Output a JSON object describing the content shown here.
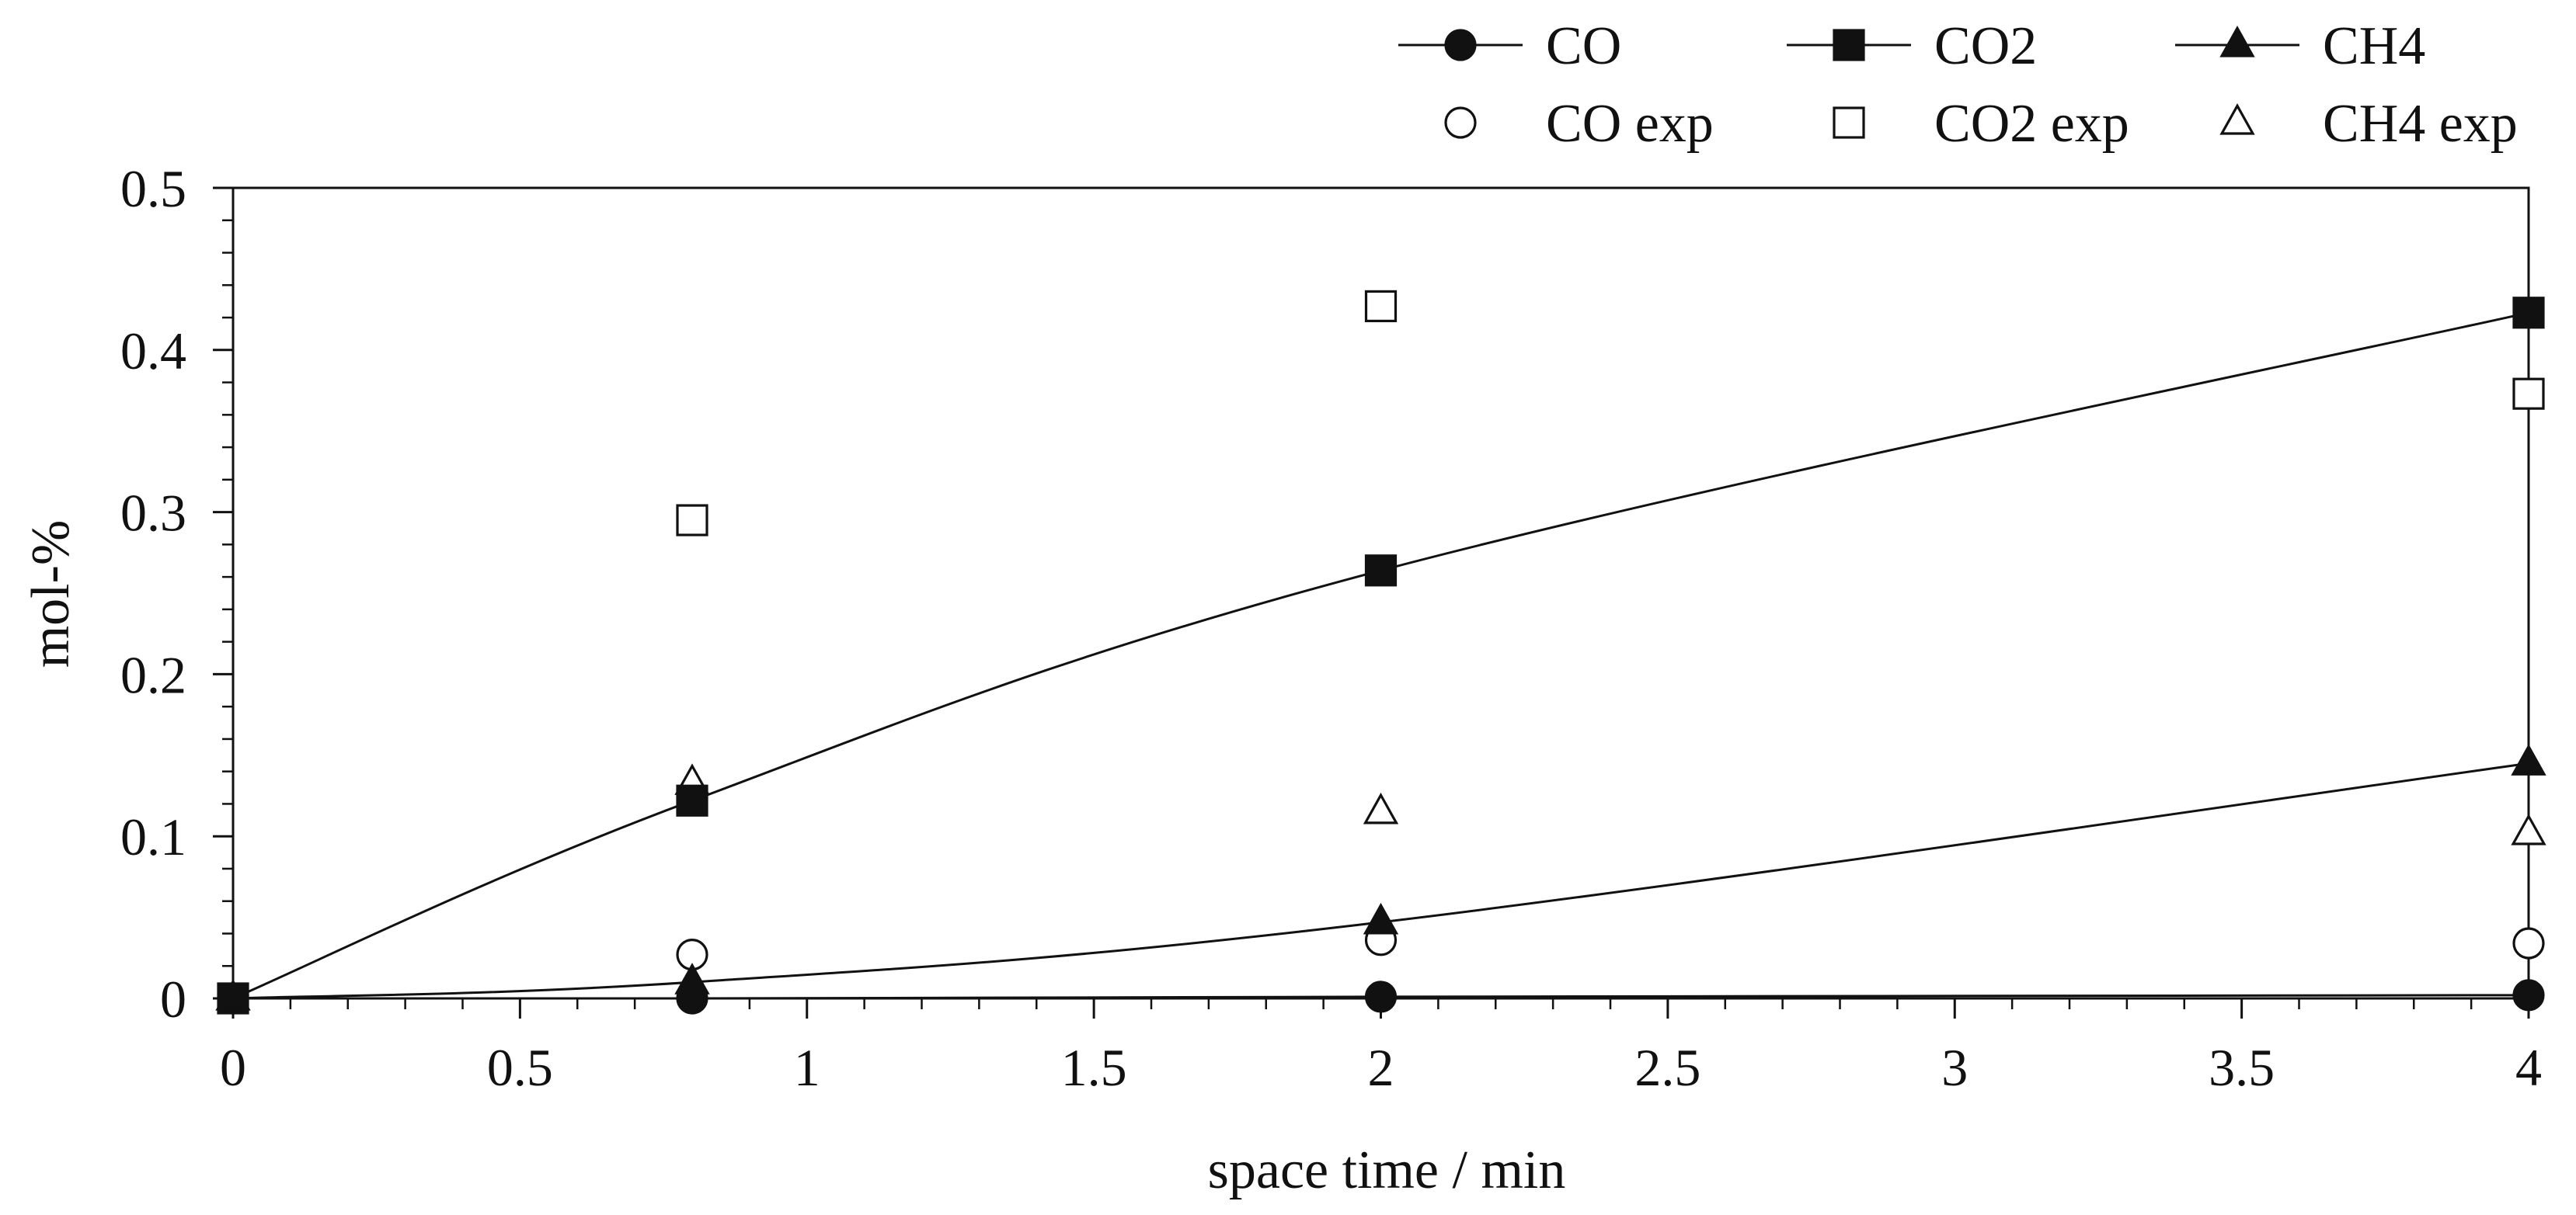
{
  "chart_data": {
    "type": "line",
    "title": "",
    "xlabel": "space time / min",
    "ylabel": "mol-%",
    "xlim": [
      0,
      4
    ],
    "ylim": [
      0,
      0.5
    ],
    "xticks": [
      0,
      0.5,
      1,
      1.5,
      2,
      2.5,
      3,
      3.5,
      4
    ],
    "xtick_labels": [
      "0",
      "0.5",
      "1",
      "1.5",
      "2",
      "2.5",
      "3",
      "3.5",
      "4"
    ],
    "yticks": [
      0,
      0.1,
      0.2,
      0.3,
      0.4,
      0.5
    ],
    "ytick_labels": [
      "0",
      "0.1",
      "0.2",
      "0.3",
      "0.4",
      "0.5"
    ],
    "grid": false,
    "legend_position": "top-right",
    "series": [
      {
        "name": "CO",
        "label": "CO",
        "kind": "model",
        "marker": "circle-filled",
        "points": [
          [
            0,
            0
          ],
          [
            0.8,
            0
          ],
          [
            2,
            0.001
          ],
          [
            4,
            0.002
          ]
        ]
      },
      {
        "name": "CO2",
        "label": "CO2",
        "kind": "model",
        "marker": "square-filled",
        "points": [
          [
            0,
            0
          ],
          [
            0.8,
            0.122
          ],
          [
            2,
            0.264
          ],
          [
            4,
            0.423
          ]
        ]
      },
      {
        "name": "CH4",
        "label": "CH4",
        "kind": "model",
        "marker": "triangle-filled",
        "points": [
          [
            0,
            0
          ],
          [
            0.8,
            0.01
          ],
          [
            2,
            0.047
          ],
          [
            4,
            0.145
          ]
        ]
      },
      {
        "name": "CO exp",
        "label": "CO exp",
        "kind": "experimental",
        "marker": "circle-open",
        "points": [
          [
            0.8,
            0.027
          ],
          [
            2,
            0.036
          ],
          [
            4,
            0.034
          ]
        ]
      },
      {
        "name": "CO2 exp",
        "label": "CO2 exp",
        "kind": "experimental",
        "marker": "square-open",
        "points": [
          [
            0.8,
            0.295
          ],
          [
            2,
            0.427
          ],
          [
            4,
            0.373
          ]
        ]
      },
      {
        "name": "CH4 exp",
        "label": "CH4 exp",
        "kind": "experimental",
        "marker": "triangle-open",
        "points": [
          [
            0.8,
            0.133
          ],
          [
            2,
            0.115
          ],
          [
            4,
            0.102
          ]
        ]
      }
    ]
  }
}
